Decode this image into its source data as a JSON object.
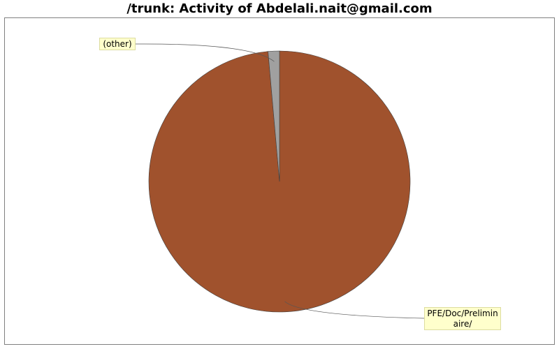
{
  "chart_data": {
    "type": "pie",
    "title": "/trunk: Activity of Abdelali.nait@gmail.com",
    "slices": [
      {
        "label": "PFE/Doc/Preliminaire/",
        "value": 98.6,
        "color": "#a0522d"
      },
      {
        "label": "(other)",
        "value": 1.4,
        "color": "#a0a0a0"
      }
    ]
  },
  "labels": {
    "other": "(other)",
    "pfe": "PFE/Doc/Prelimin aire/"
  }
}
